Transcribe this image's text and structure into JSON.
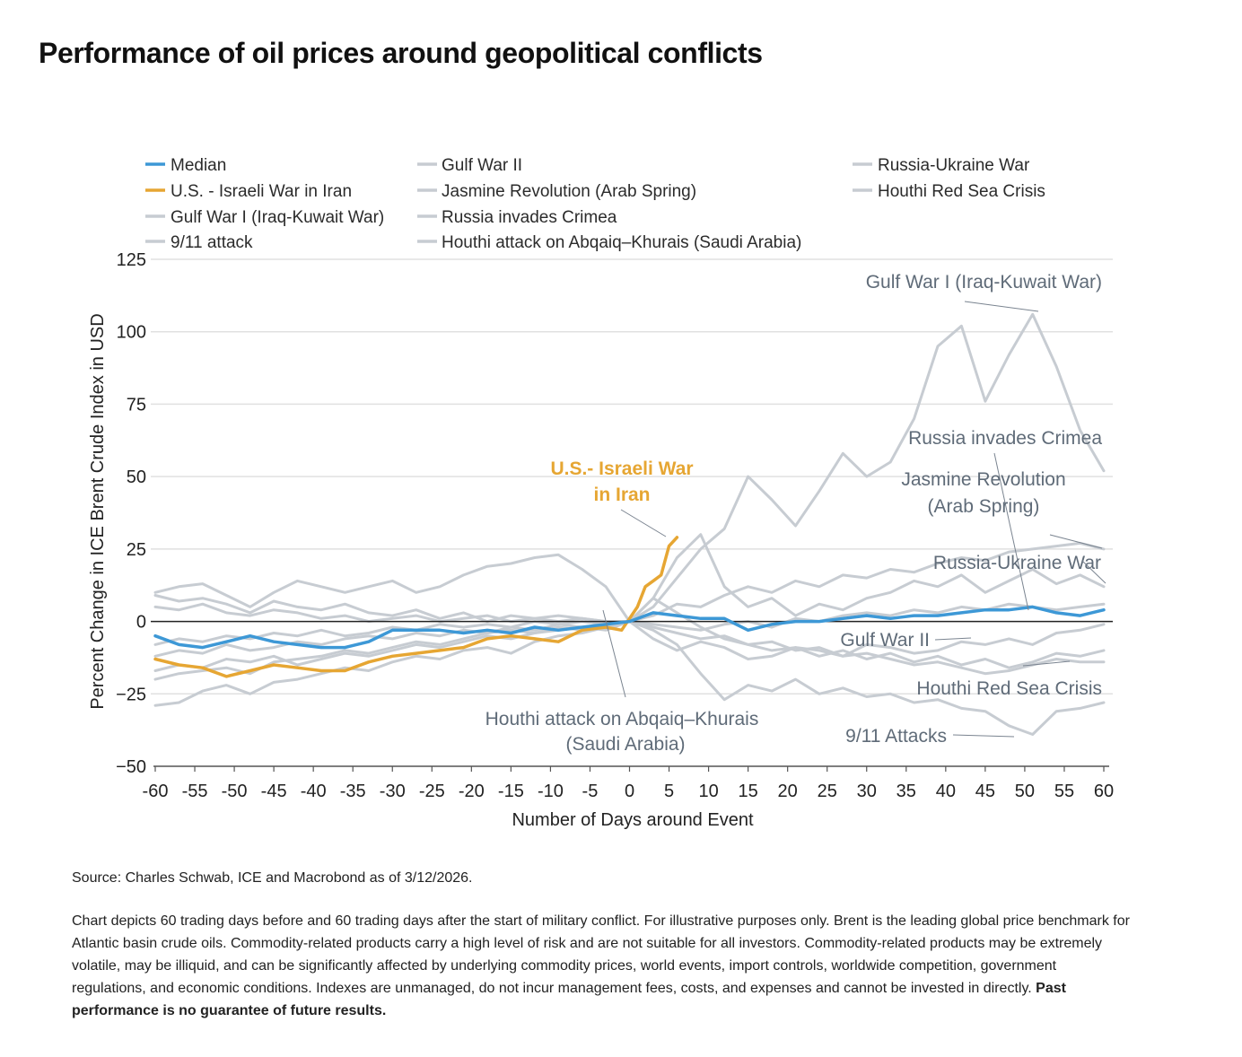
{
  "title": "Performance of oil prices around geopolitical conflicts",
  "chart_data": {
    "type": "line",
    "xlabel": "Number of Days around Event",
    "ylabel": "Percent Change in ICE Brent Crude Index in USD",
    "xlim": [
      -60,
      60
    ],
    "ylim": [
      -50,
      125
    ],
    "xticks": [
      -60,
      -55,
      -50,
      -45,
      -40,
      -35,
      -30,
      -25,
      -20,
      -15,
      -10,
      -5,
      0,
      5,
      10,
      15,
      20,
      25,
      30,
      35,
      40,
      45,
      50,
      55,
      60
    ],
    "xtick_labels": [
      "-60",
      "-55",
      "-50",
      "-45",
      "-40",
      "-35",
      "-30",
      "-25",
      "-20",
      "-15",
      "-10",
      "-5",
      "0",
      "5",
      "10",
      "15",
      "20",
      "25",
      "30",
      "35",
      "40",
      "45",
      "50",
      "55",
      "60"
    ],
    "yticks": [
      -50,
      -25,
      0,
      25,
      50,
      75,
      100,
      125
    ],
    "ytick_labels": [
      "−50",
      "−25",
      "0",
      "25",
      "50",
      "75",
      "100",
      "125"
    ],
    "grid": "horizontal",
    "legend_position": "top",
    "x": [
      -60,
      -57,
      -54,
      -51,
      -48,
      -45,
      -42,
      -39,
      -36,
      -33,
      -30,
      -27,
      -24,
      -21,
      -18,
      -15,
      -12,
      -9,
      -6,
      -3,
      0,
      3,
      6,
      9,
      12,
      15,
      18,
      21,
      24,
      27,
      30,
      33,
      36,
      39,
      42,
      45,
      48,
      51,
      54,
      57,
      60
    ],
    "series": [
      {
        "name": "Median",
        "color": "#3d98d6",
        "values": [
          -5,
          -8,
          -9,
          -7,
          -5,
          -7,
          -8,
          -9,
          -9,
          -7,
          -3,
          -3,
          -3,
          -4,
          -3,
          -4,
          -2,
          -3,
          -2,
          -1,
          0,
          3,
          2,
          1,
          1,
          -3,
          -1,
          0,
          0,
          1,
          2,
          1,
          2,
          2,
          3,
          4,
          4,
          5,
          3,
          2,
          4
        ]
      },
      {
        "name": "U.S. - Israeli War in Iran",
        "color": "#e6a633",
        "x": [
          -60,
          -57,
          -54,
          -51,
          -48,
          -45,
          -42,
          -39,
          -36,
          -33,
          -30,
          -27,
          -24,
          -21,
          -18,
          -15,
          -12,
          -9,
          -6,
          -3,
          -1,
          0,
          1,
          2,
          3,
          4,
          5,
          6
        ],
        "values": [
          -13,
          -15,
          -16,
          -19,
          -17,
          -15,
          -16,
          -17,
          -17,
          -14,
          -12,
          -11,
          -10,
          -9,
          -6,
          -5,
          -6,
          -7,
          -3,
          -2,
          -3,
          1,
          5,
          12,
          14,
          16,
          26,
          29
        ]
      },
      {
        "name": "Gulf War I (Iraq-Kuwait War)",
        "color": "#c7ccd2",
        "values": [
          -8,
          -6,
          -7,
          -5,
          -6,
          -4,
          -5,
          -3,
          -5,
          -4,
          -2,
          -3,
          -1,
          -2,
          -1,
          -2,
          0,
          -1,
          0,
          -1,
          0,
          5,
          15,
          25,
          32,
          50,
          42,
          33,
          45,
          58,
          50,
          55,
          70,
          95,
          102,
          76,
          92,
          106,
          88,
          66,
          52
        ]
      },
      {
        "name": "9/11 attack",
        "color": "#c7ccd2",
        "values": [
          -12,
          -10,
          -11,
          -8,
          -10,
          -9,
          -7,
          -8,
          -6,
          -5,
          -6,
          -4,
          -5,
          -3,
          -4,
          -2,
          -3,
          -1,
          -2,
          -1,
          0,
          -3,
          -8,
          -18,
          -27,
          -22,
          -24,
          -20,
          -25,
          -23,
          -26,
          -25,
          -28,
          -27,
          -30,
          -31,
          -36,
          -39,
          -31,
          -30,
          -28
        ]
      },
      {
        "name": "Gulf War II",
        "color": "#c7ccd2",
        "values": [
          10,
          12,
          13,
          9,
          5,
          10,
          14,
          12,
          10,
          12,
          14,
          10,
          12,
          16,
          19,
          20,
          22,
          23,
          18,
          12,
          0,
          -6,
          -10,
          -7,
          -9,
          -13,
          -12,
          -9,
          -10,
          -12,
          -8,
          -9,
          -11,
          -10,
          -7,
          -8,
          -6,
          -8,
          -4,
          -3,
          -1
        ]
      },
      {
        "name": "Jasmine Revolution (Arab Spring)",
        "color": "#c7ccd2",
        "values": [
          -29,
          -28,
          -24,
          -22,
          -25,
          -21,
          -20,
          -18,
          -16,
          -17,
          -14,
          -12,
          -13,
          -10,
          -9,
          -11,
          -7,
          -5,
          -4,
          -2,
          0,
          2,
          6,
          5,
          9,
          12,
          10,
          14,
          12,
          16,
          15,
          18,
          17,
          20,
          22,
          21,
          24,
          25,
          26,
          27,
          25
        ]
      },
      {
        "name": "Russia invades Crimea",
        "color": "#c7ccd2",
        "values": [
          5,
          4,
          6,
          3,
          2,
          4,
          3,
          1,
          2,
          0,
          1,
          2,
          0,
          1,
          2,
          0,
          1,
          2,
          1,
          0,
          0,
          -1,
          -2,
          -3,
          -1,
          0,
          -2,
          1,
          0,
          2,
          3,
          2,
          4,
          3,
          5,
          4,
          6,
          5,
          4,
          5,
          6
        ]
      },
      {
        "name": "Houthi attack on Abqaiq–Khurais (Saudi Arabia)",
        "color": "#c7ccd2",
        "values": [
          -17,
          -15,
          -16,
          -13,
          -14,
          -12,
          -15,
          -13,
          -11,
          -12,
          -10,
          -8,
          -9,
          -7,
          -5,
          -6,
          -4,
          -3,
          -2,
          -3,
          0,
          8,
          3,
          -2,
          -6,
          -8,
          -10,
          -9,
          -12,
          -10,
          -13,
          -11,
          -14,
          -12,
          -15,
          -13,
          -16,
          -14,
          -11,
          -12,
          -10
        ]
      },
      {
        "name": "Russia-Ukraine War",
        "color": "#c7ccd2",
        "values": [
          -20,
          -18,
          -17,
          -16,
          -18,
          -14,
          -13,
          -12,
          -10,
          -11,
          -9,
          -7,
          -8,
          -6,
          -4,
          -3,
          -4,
          -2,
          -3,
          -1,
          0,
          8,
          22,
          30,
          12,
          5,
          8,
          2,
          6,
          4,
          8,
          10,
          14,
          12,
          16,
          10,
          14,
          18,
          13,
          16,
          12
        ]
      },
      {
        "name": "Houthi Red Sea Crisis",
        "color": "#c7ccd2",
        "values": [
          9,
          7,
          8,
          6,
          3,
          7,
          5,
          4,
          6,
          3,
          2,
          4,
          1,
          3,
          0,
          2,
          1,
          0,
          1,
          0,
          0,
          -2,
          -4,
          -6,
          -5,
          -8,
          -7,
          -10,
          -9,
          -12,
          -11,
          -13,
          -15,
          -14,
          -16,
          -18,
          -17,
          -15,
          -13,
          -14,
          -14
        ]
      }
    ],
    "annotations": [
      {
        "lines": [
          "Gulf War I (Iraq-Kuwait War)"
        ]
      },
      {
        "lines": [
          "Russia invades Crimea"
        ]
      },
      {
        "lines": [
          "Jasmine Revolution",
          "(Arab Spring)"
        ]
      },
      {
        "lines": [
          "Russia-Ukraine War"
        ]
      },
      {
        "lines": [
          "Gulf War II"
        ]
      },
      {
        "lines": [
          "Houthi Red Sea Crisis"
        ]
      },
      {
        "lines": [
          "9/11 Attacks"
        ]
      },
      {
        "lines": [
          "U.S.- Israeli War",
          "in Iran"
        ],
        "color": "#e6a633"
      },
      {
        "lines": [
          "Houthi attack on Abqaiq–Khurais",
          "(Saudi Arabia)"
        ]
      }
    ],
    "colors": {
      "annotation": "#5f6b78",
      "zero_line": "#222222",
      "gridline": "#e0e0e0"
    }
  },
  "footer": {
    "source": "Source: Charles Schwab, ICE and Macrobond as of 3/12/2026.",
    "disclaimer": "Chart depicts 60 trading days before and 60 trading days after the start of military conflict. For illustrative purposes only. Brent is the leading global price benchmark for Atlantic basin crude oils. Commodity-related products carry a high level of risk and are not suitable for all investors. Commodity-related products may be extremely volatile, may be illiquid, and can be significantly affected by underlying commodity prices, world events, import controls, worldwide competition, government regulations, and economic conditions. Indexes are unmanaged, do not incur management fees, costs, and expenses and cannot be invested in directly.",
    "disclaimer_bold": "Past performance is no guarantee of future results."
  }
}
